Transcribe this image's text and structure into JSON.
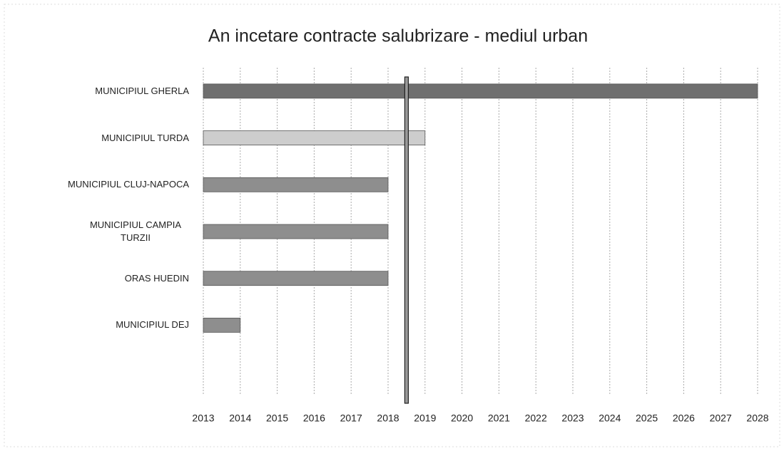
{
  "chart_data": {
    "type": "bar",
    "orientation": "horizontal",
    "title": "An incetare contracte salubrizare - mediul urban",
    "categories": [
      "MUNICIPIUL GHERLA",
      "MUNICIPIUL TURDA",
      "MUNICIPIUL CLUJ-NAPOCA",
      "MUNICIPIUL CAMPIA TURZII",
      "ORAS HUEDIN",
      "MUNICIPIUL DEJ"
    ],
    "values": [
      2028,
      2019,
      2018,
      2018,
      2018,
      2014
    ],
    "colors": [
      "#6f6f6f",
      "#cdcdcd",
      "#8e8e8e",
      "#8e8e8e",
      "#8e8e8e",
      "#8e8e8e"
    ],
    "xlim": [
      2013,
      2028
    ],
    "xticks": [
      2013,
      2014,
      2015,
      2016,
      2017,
      2018,
      2019,
      2020,
      2021,
      2022,
      2023,
      2024,
      2025,
      2026,
      2027,
      2028
    ],
    "reference_line": 2018.5,
    "grid": true
  }
}
